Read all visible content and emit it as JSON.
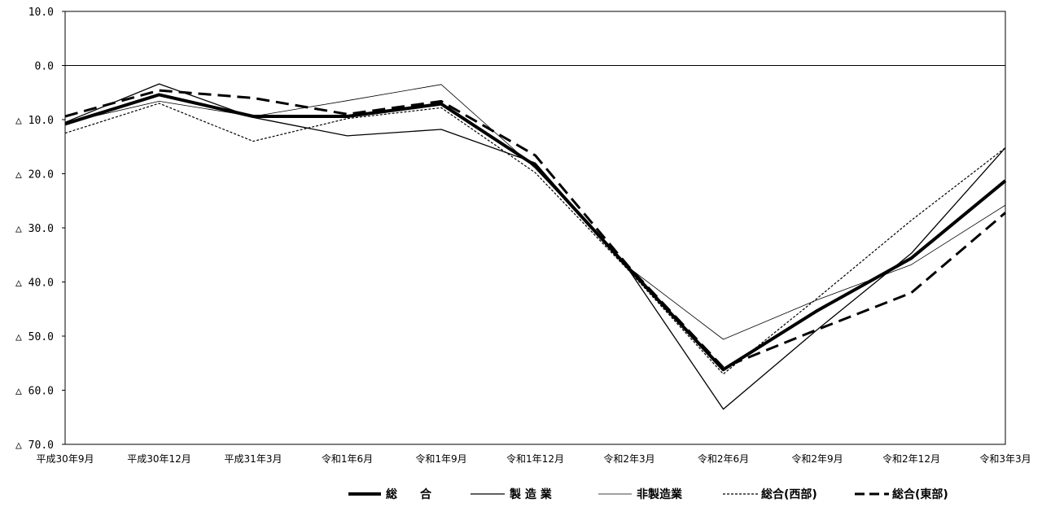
{
  "chart_data": {
    "type": "line",
    "ylim": [
      -70,
      10
    ],
    "y_ticks": [
      10,
      0,
      -10,
      -20,
      -30,
      -40,
      -50,
      -60,
      -70
    ],
    "y_tick_labels": [
      "10.0",
      "0.0",
      "△ 10.0",
      "△ 20.0",
      "△ 30.0",
      "△ 40.0",
      "△ 50.0",
      "△ 60.0",
      "△ 70.0"
    ],
    "categories": [
      "平成30年9月",
      "平成30年12月",
      "平成31年3月",
      "令和1年6月",
      "令和1年9月",
      "令和1年12月",
      "令和2年3月",
      "令和2年6月",
      "令和2年9月",
      "令和2年12月",
      "令和3年3月"
    ],
    "series": [
      {
        "name": "総　　合",
        "style": "thick",
        "values": [
          -10.8,
          -5.4,
          -9.4,
          -9.4,
          -7.1,
          -18.5,
          -37.6,
          -56.2,
          -45.3,
          -35.6,
          -21.3
        ]
      },
      {
        "name": "製 造 業",
        "style": "solid",
        "values": [
          -10.5,
          -3.4,
          -9.6,
          -13.0,
          -11.8,
          -18.0,
          -37.9,
          -63.5,
          -48.8,
          -34.7,
          -15.2
        ]
      },
      {
        "name": "非製造業",
        "style": "thin",
        "values": [
          -10.6,
          -6.6,
          -9.4,
          -6.5,
          -3.5,
          -19.0,
          -37.4,
          -50.6,
          -43.3,
          -36.8,
          -25.8
        ]
      },
      {
        "name": "総合(西部)",
        "style": "dotted",
        "values": [
          -12.5,
          -7.0,
          -14.0,
          -9.8,
          -7.8,
          -19.8,
          -38.0,
          -57.0,
          -43.0,
          -28.6,
          -15.2
        ]
      },
      {
        "name": "総合(東部)",
        "style": "dashed",
        "values": [
          -9.4,
          -4.6,
          -6.0,
          -9.0,
          -6.6,
          -16.6,
          -37.3,
          -55.8,
          -48.8,
          -42.0,
          -27.2
        ]
      }
    ],
    "legend_position": "bottom",
    "grid": false,
    "zero_line": true
  }
}
